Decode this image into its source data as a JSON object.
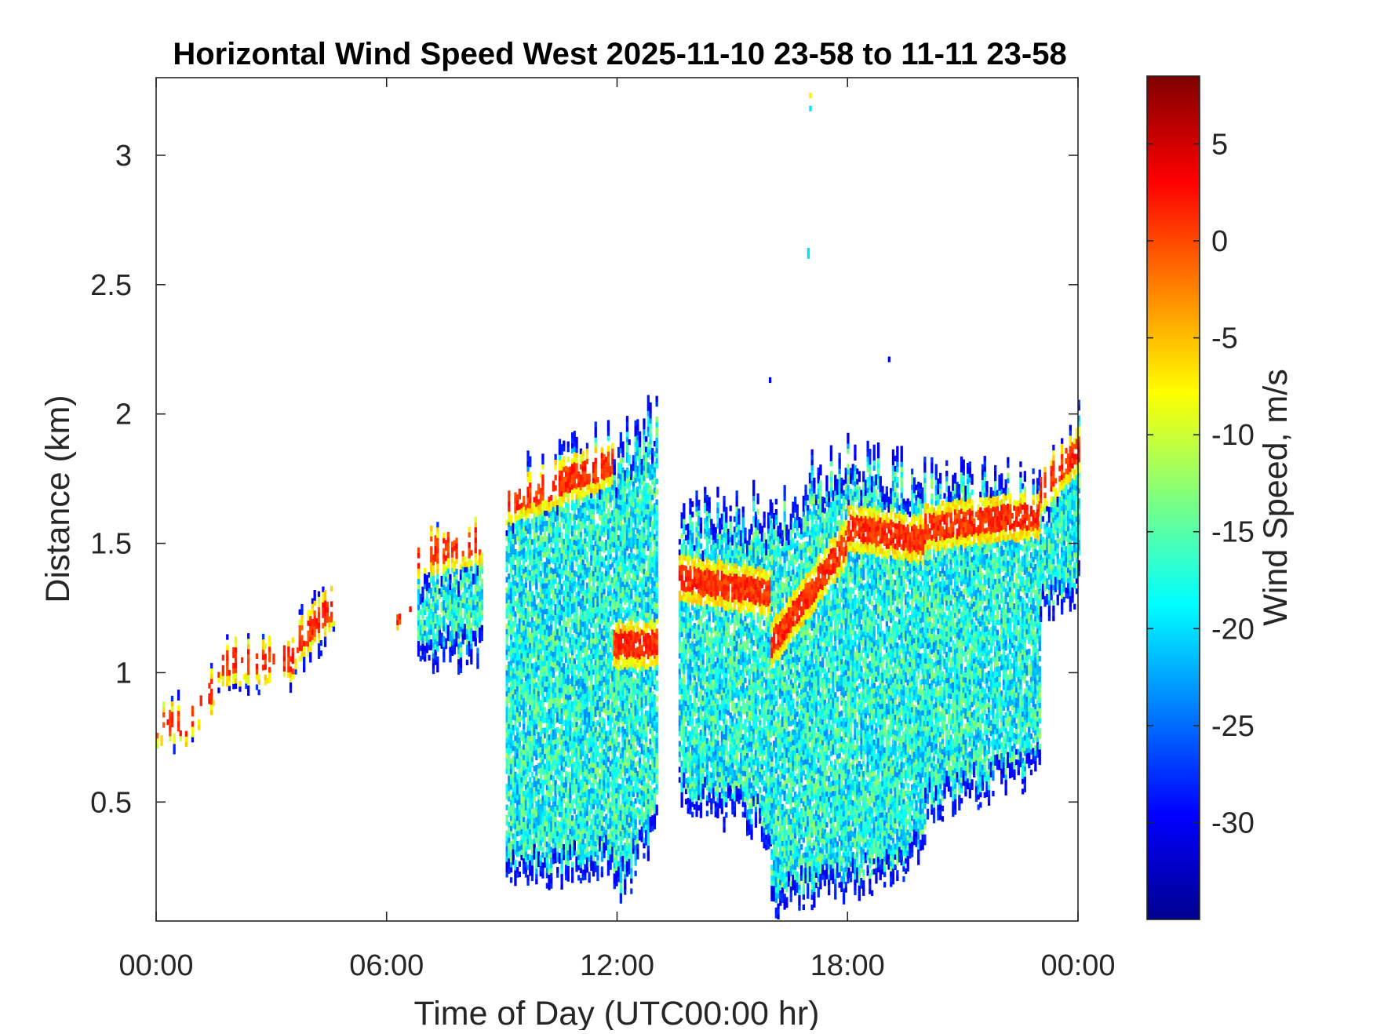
{
  "chart_data": {
    "type": "heatmap",
    "title": "Horizontal Wind Speed West 2025-11-10 23-58 to 11-11 23-58",
    "xlabel": "Time of Day (UTC00:00 hr)",
    "ylabel": "Distance (km)",
    "colorbar_label": "Wind Speed, m/s",
    "x_tick_labels": [
      "00:00",
      "06:00",
      "12:00",
      "18:00",
      "00:00"
    ],
    "x_ticks_hours": [
      0,
      6,
      12,
      18,
      24
    ],
    "xlim_hours": [
      0,
      24
    ],
    "y_ticks": [
      0.5,
      1,
      1.5,
      2,
      2.5,
      3
    ],
    "y_tick_labels": [
      "0.5",
      "1",
      "1.5",
      "2",
      "2.5",
      "3"
    ],
    "ylim": [
      0.04,
      3.3
    ],
    "colorbar_ticks": [
      5,
      0,
      -5,
      -10,
      -15,
      -20,
      -25,
      -30
    ],
    "colorbar_tick_labels": [
      "5",
      "0",
      "-5",
      "-10",
      "-15",
      "-20",
      "-25",
      "-30"
    ],
    "clim": [
      -35,
      8.5
    ],
    "colormap": "jet",
    "grid": false,
    "segments": [
      {
        "hours": [
          0.0,
          0.75
        ],
        "base_km": [
          0.66,
          0.7
        ],
        "top_km": [
          0.92,
          0.93
        ],
        "peak_km": [
          0.79,
          0.8
        ]
      },
      {
        "hours": [
          0.75,
          1.6
        ],
        "base_km": [
          0.7,
          0.85
        ],
        "top_km": [
          0.93,
          1.08
        ],
        "peak_km": [
          0.8,
          0.95
        ]
      },
      {
        "hours": [
          1.6,
          3.6
        ],
        "base_km": [
          0.88,
          0.92
        ],
        "top_km": [
          1.16,
          1.16
        ],
        "peak_km": [
          1.03,
          1.04
        ]
      },
      {
        "hours": [
          3.6,
          4.6
        ],
        "base_km": [
          0.93,
          1.1
        ],
        "top_km": [
          1.27,
          1.37
        ],
        "peak_km": [
          1.1,
          1.25
        ]
      },
      {
        "hours": [
          6.2,
          6.8
        ],
        "base_km": [
          1.15,
          1.18
        ],
        "top_km": [
          1.27,
          1.3
        ],
        "peak_km": [
          1.22,
          1.24
        ]
      },
      {
        "hours": [
          6.8,
          8.5
        ],
        "base_km": [
          0.95,
          1.0
        ],
        "top_km": [
          1.55,
          1.6
        ],
        "peak_km": [
          1.45,
          1.5
        ]
      },
      {
        "hours": [
          9.1,
          11.9
        ],
        "base_km": [
          0.12,
          0.2
        ],
        "top_km": [
          1.8,
          2.0
        ],
        "peak_km": [
          1.65,
          1.8
        ]
      },
      {
        "hours": [
          11.9,
          13.0
        ],
        "base_km": [
          0.04,
          0.3
        ],
        "top_km": [
          1.95,
          2.1
        ],
        "peak_km": [
          1.1,
          1.1
        ]
      },
      {
        "hours": [
          13.6,
          16.0
        ],
        "base_km": [
          0.45,
          0.3
        ],
        "top_km": [
          1.7,
          1.75
        ],
        "peak_km": [
          1.35,
          1.3
        ]
      },
      {
        "hours": [
          16.0,
          18.0
        ],
        "base_km": [
          0.04,
          0.1
        ],
        "top_km": [
          1.75,
          1.95
        ],
        "peak_km": [
          1.1,
          1.5
        ]
      },
      {
        "hours": [
          18.0,
          20.0
        ],
        "base_km": [
          0.1,
          0.2
        ],
        "top_km": [
          1.9,
          1.85
        ],
        "peak_km": [
          1.55,
          1.5
        ]
      },
      {
        "hours": [
          20.0,
          23.0
        ],
        "base_km": [
          0.4,
          0.55
        ],
        "top_km": [
          1.85,
          1.85
        ],
        "peak_km": [
          1.55,
          1.6
        ]
      },
      {
        "hours": [
          23.0,
          24.0
        ],
        "base_km": [
          1.15,
          1.25
        ],
        "top_km": [
          1.8,
          2.1
        ],
        "peak_km": [
          1.7,
          1.85
        ]
      }
    ],
    "isolated_points": [
      {
        "hour": 17.0,
        "km": 3.22,
        "speed": -7
      },
      {
        "hour": 17.0,
        "km": 3.17,
        "speed": -20
      },
      {
        "hour": 16.95,
        "km": 2.62,
        "speed": -20
      },
      {
        "hour": 16.95,
        "km": 2.6,
        "speed": -20
      },
      {
        "hour": 19.05,
        "km": 2.2,
        "speed": -30
      },
      {
        "hour": 15.95,
        "km": 2.12,
        "speed": -30
      }
    ]
  }
}
